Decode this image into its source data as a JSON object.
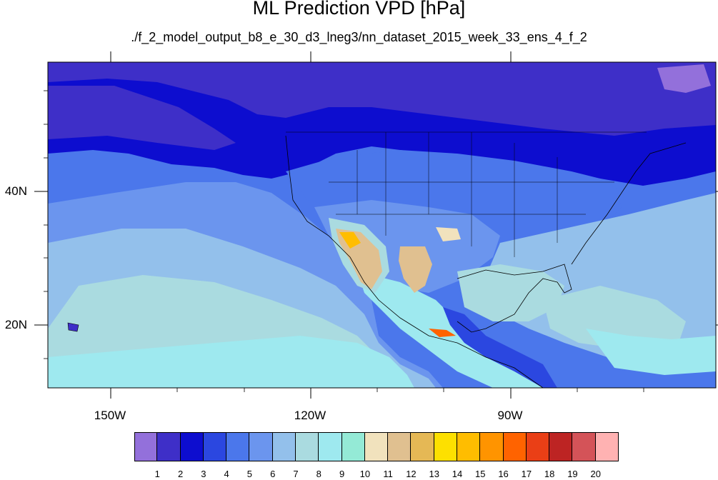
{
  "title": "ML Prediction VPD [hPa]",
  "subtitle": "./f_2_model_output_b8_e_30_d3_lneg3/nn_dataset_2015_week_33_ens_4_f_2",
  "lat_labels": [
    "40N",
    "20N"
  ],
  "lon_labels": [
    "150W",
    "120W",
    "90W"
  ],
  "colorbar": {
    "labels": [
      "1",
      "2",
      "3",
      "4",
      "5",
      "6",
      "7",
      "8",
      "9",
      "10",
      "11",
      "12",
      "13",
      "14",
      "15",
      "16",
      "17",
      "18",
      "19",
      "20"
    ],
    "colors": [
      "#9370db",
      "#3e2fc8",
      "#0d0dcf",
      "#2b47e0",
      "#4b77eb",
      "#6b95ee",
      "#93c0eb",
      "#aadbe0",
      "#9ee9ef",
      "#94ead6",
      "#f1e2bd",
      "#e0c090",
      "#e5b855",
      "#fde000",
      "#ffbd00",
      "#ff9400",
      "#ff6300",
      "#ea3f16",
      "#bd2423",
      "#d45358",
      "#ffb2b2"
    ]
  },
  "map_extent": {
    "lon": [
      -160,
      -62
    ],
    "lat": [
      11,
      58
    ]
  }
}
